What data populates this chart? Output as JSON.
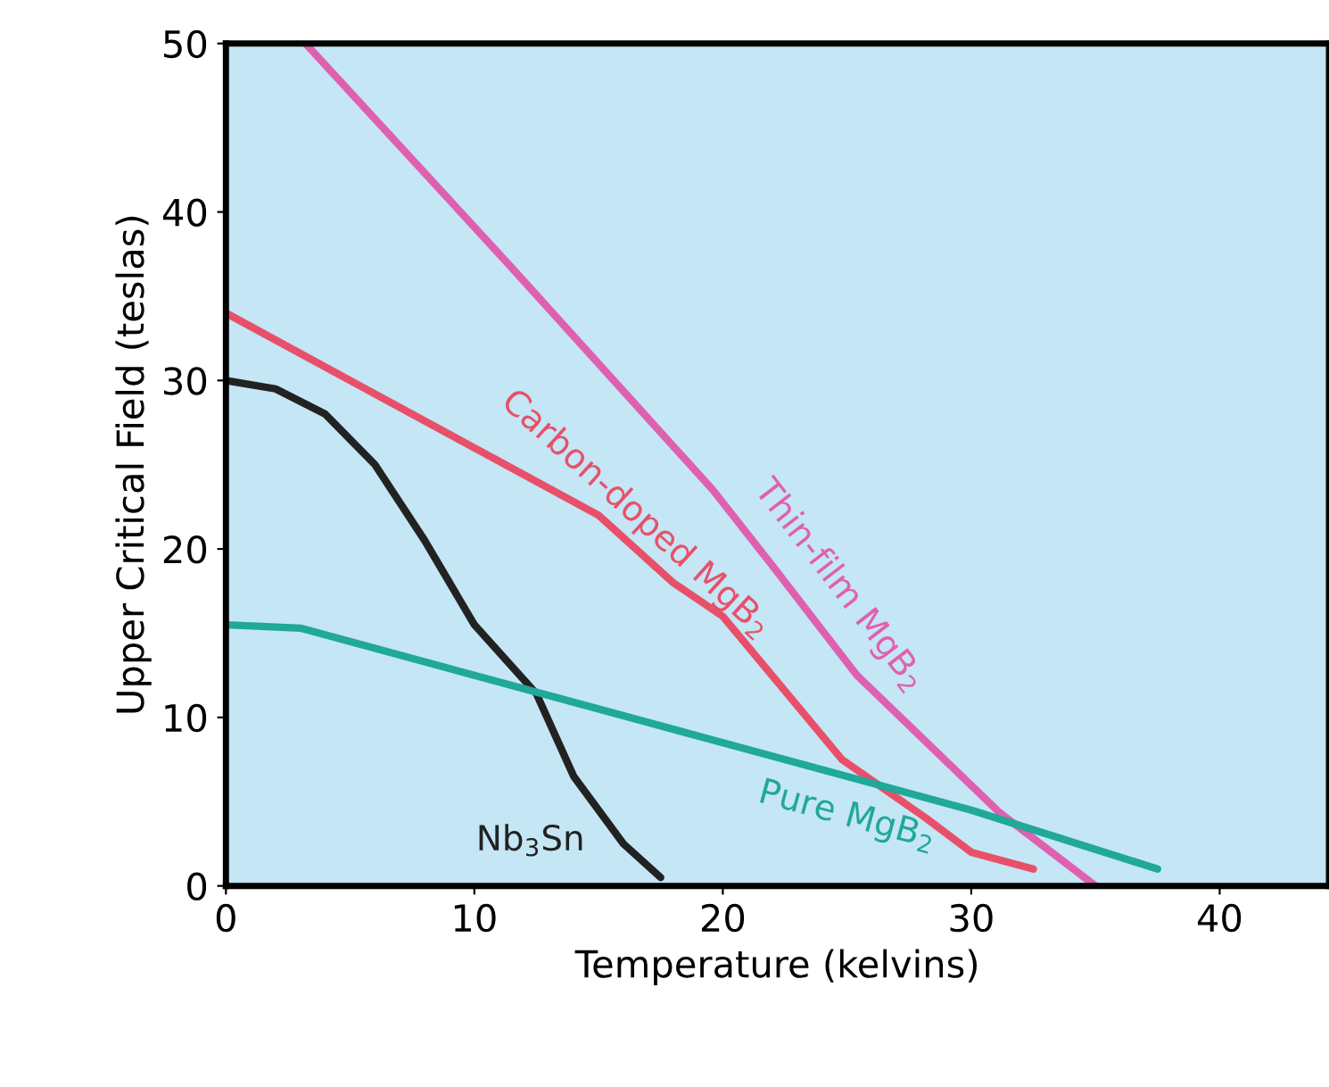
{
  "chart_data": {
    "type": "line",
    "xlabel": "Temperature (kelvins)",
    "ylabel": "Upper Critical Field (teslas)",
    "xlim": [
      0,
      44.4
    ],
    "ylim": [
      0,
      50
    ],
    "xticks": [
      0,
      10,
      20,
      30,
      40
    ],
    "yticks": [
      0,
      10,
      20,
      30,
      40,
      50
    ],
    "grid": false,
    "legend": false,
    "marker": "none",
    "line_style": "solid",
    "series": [
      {
        "name": "Thin-film MgB$_{2}$",
        "color": "#e060b0",
        "x": [
          3.2,
          11.5,
          19.6,
          22,
          25.4,
          31.1,
          35
        ],
        "values": [
          50,
          36.7,
          23.5,
          19,
          12.5,
          4.4,
          0
        ]
      },
      {
        "name": "Carbon-doped MgB$_{2}$",
        "color": "#e8506a",
        "x": [
          0,
          5,
          10,
          15,
          18,
          20,
          24.8,
          28.2,
          30,
          32.5
        ],
        "values": [
          34,
          30,
          26,
          22,
          18,
          16,
          7.5,
          4,
          2,
          1
        ]
      },
      {
        "name": "Nb$_{3}$Sn",
        "color": "#222222",
        "x": [
          0,
          2,
          4,
          6,
          8,
          10,
          12.5,
          14,
          16,
          17.5
        ],
        "values": [
          30,
          29.5,
          28,
          25,
          20.5,
          15.5,
          11.4,
          6.5,
          2.5,
          0.5
        ]
      },
      {
        "name": "Pure MgB$_{2}$",
        "color": "#20a898",
        "x": [
          0,
          3,
          10,
          20,
          30,
          37.5
        ],
        "values": [
          15.5,
          15.3,
          12.5,
          8.5,
          4.5,
          1
        ]
      }
    ]
  }
}
